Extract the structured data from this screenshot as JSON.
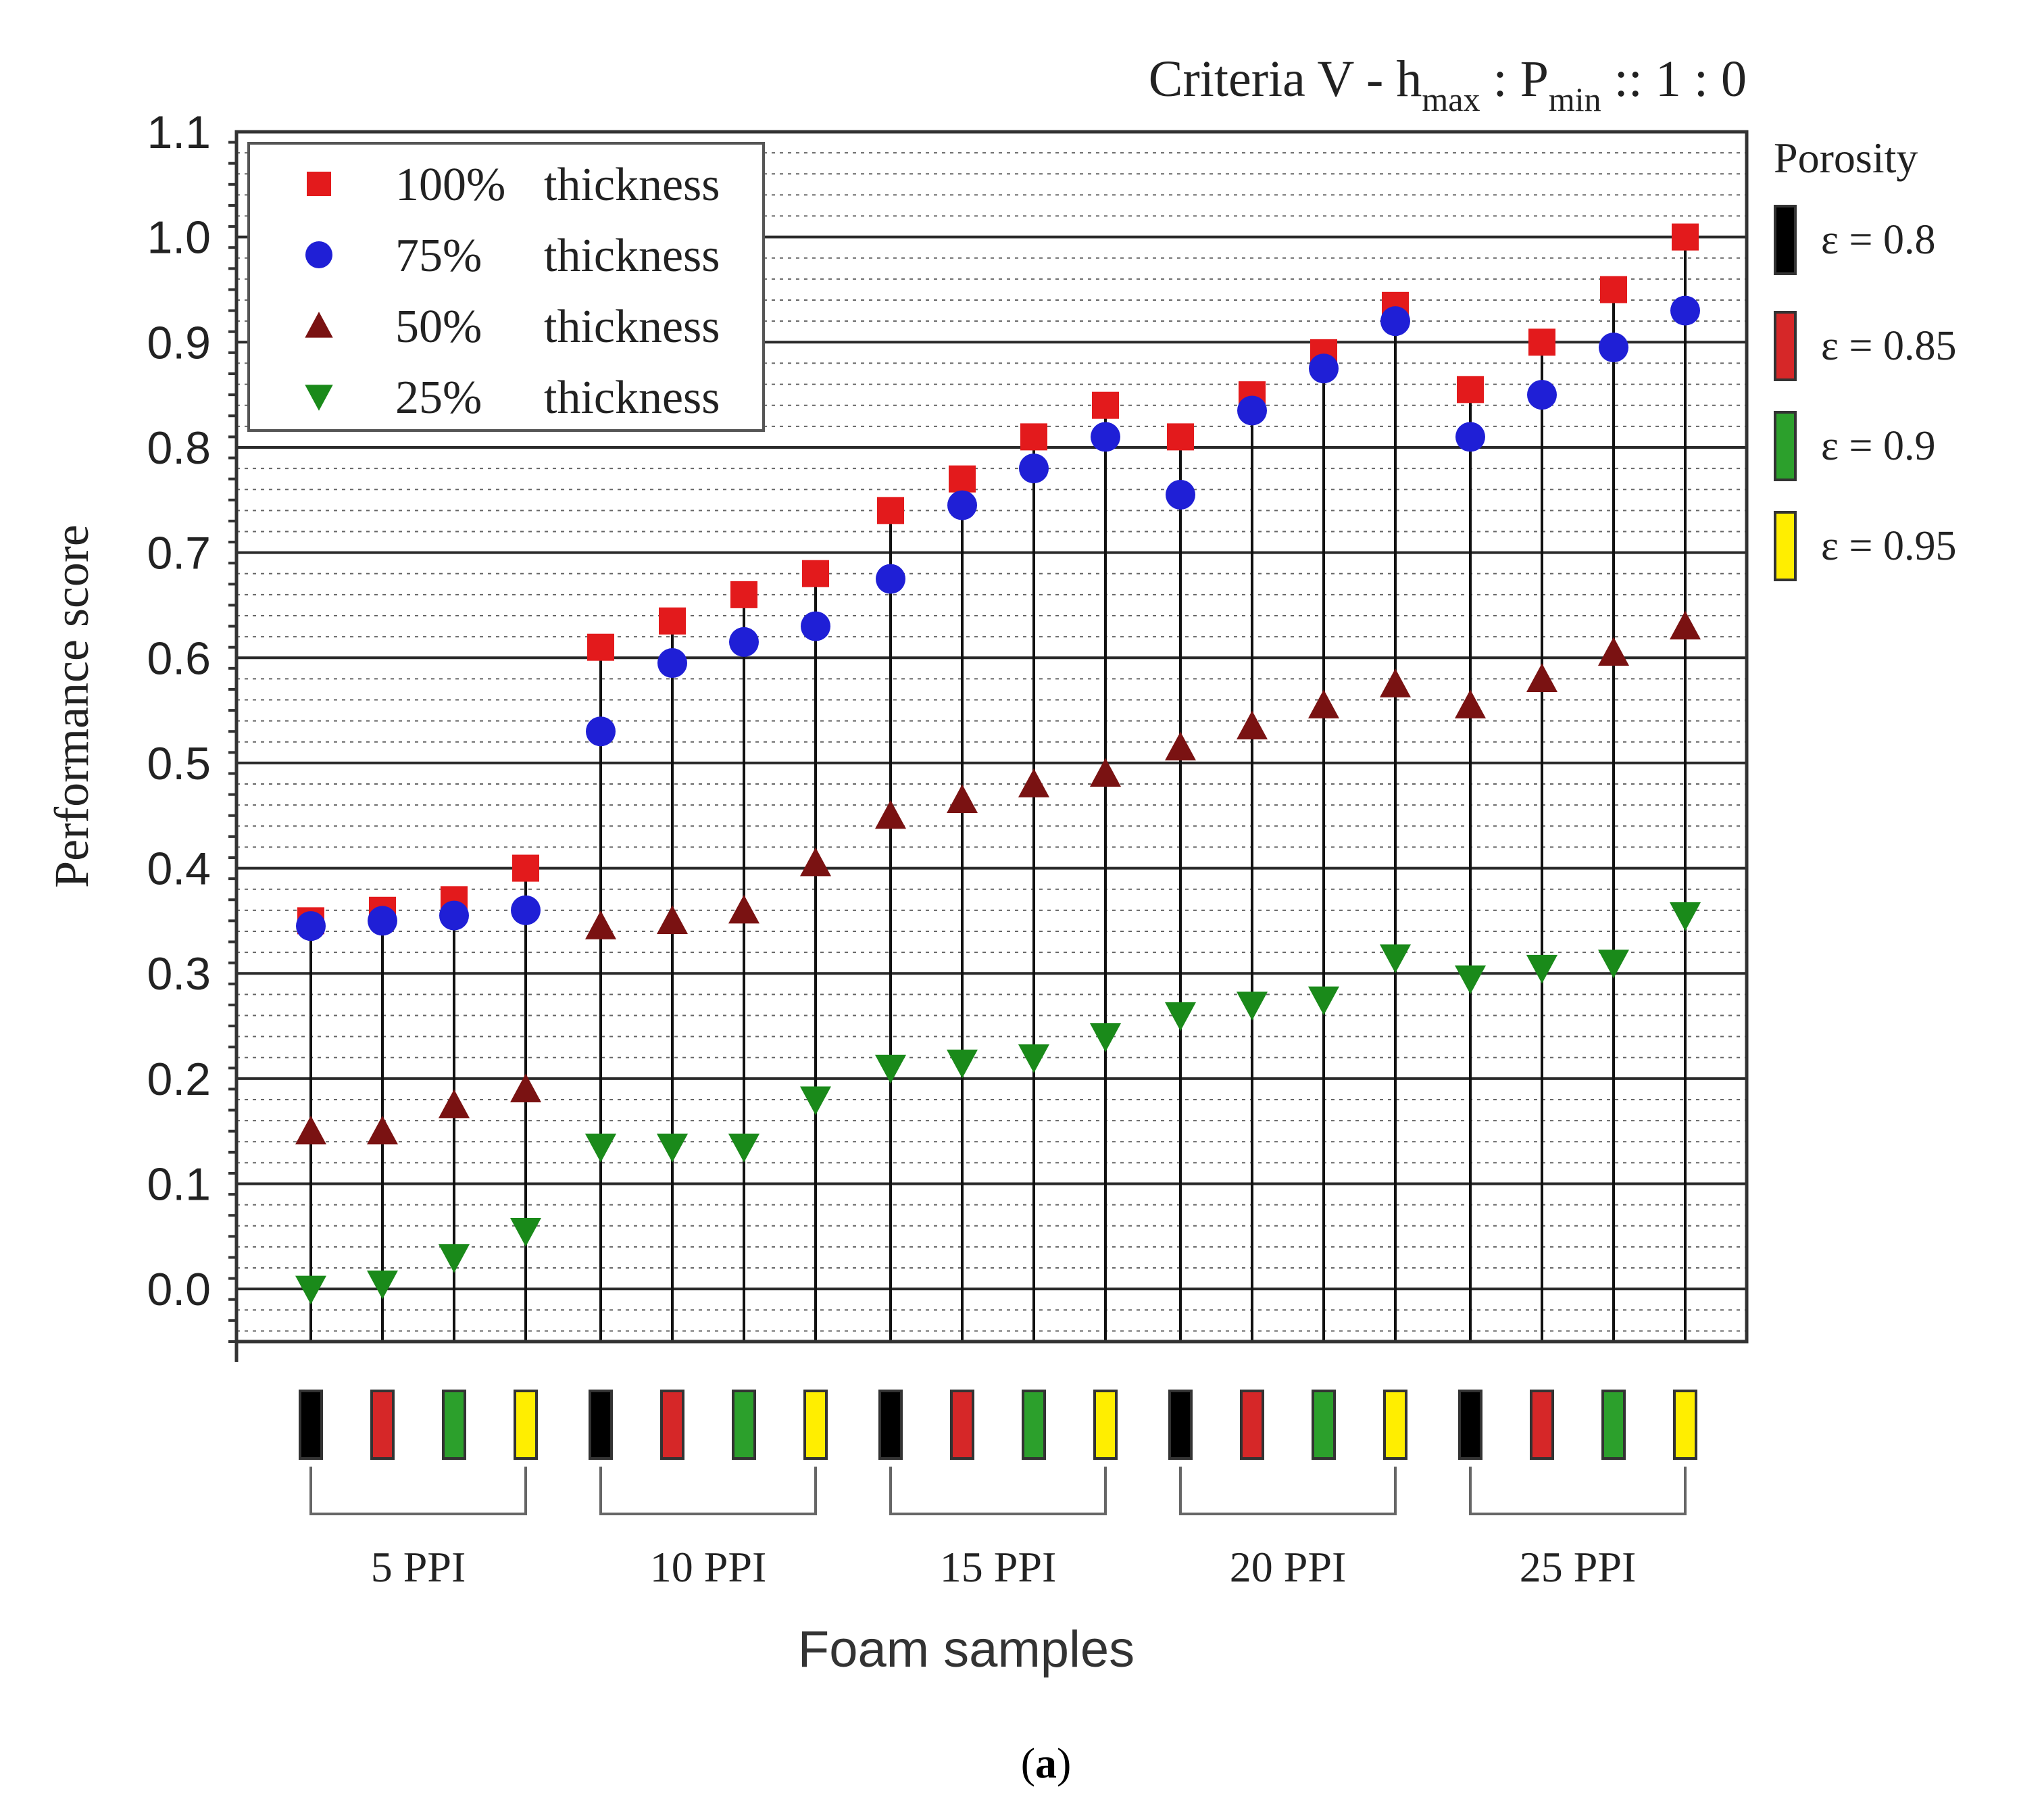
{
  "caption": {
    "open": "(",
    "letter": "a",
    "close": ")"
  },
  "chart_data": {
    "type": "scatter",
    "title": "Criteria V - h",
    "title_parts": {
      "main": "Criteria V - h",
      "sub1": "max",
      "mid": " : P",
      "sub2": "min",
      "tail": " :: 1 : 0"
    },
    "xlabel": "Foam samples",
    "ylabel": "Performance score",
    "ylim": [
      -0.05,
      1.1
    ],
    "y_ticks": [
      "0.0",
      "0.1",
      "0.2",
      "0.3",
      "0.4",
      "0.5",
      "0.6",
      "0.7",
      "0.8",
      "0.9",
      "1.0",
      "1.1"
    ],
    "groups": [
      "5 PPI",
      "10 PPI",
      "15 PPI",
      "20 PPI",
      "25 PPI"
    ],
    "porosity_per_group": [
      "0.8",
      "0.85",
      "0.9",
      "0.95"
    ],
    "series": [
      {
        "name": "100% thickness",
        "legend_pct": "100%",
        "legend_word": "thickness",
        "marker": "square",
        "color": "#e31a1c",
        "values": [
          0.35,
          0.36,
          0.37,
          0.4,
          0.61,
          0.635,
          0.66,
          0.68,
          0.74,
          0.77,
          0.81,
          0.84,
          0.81,
          0.85,
          0.89,
          0.935,
          0.855,
          0.9,
          0.95,
          1.0
        ]
      },
      {
        "name": "75% thickness",
        "legend_pct": "75%",
        "legend_word": "thickness",
        "marker": "circle",
        "color": "#1f1fd6",
        "values": [
          0.345,
          0.35,
          0.355,
          0.36,
          0.53,
          0.595,
          0.615,
          0.63,
          0.675,
          0.745,
          0.78,
          0.81,
          0.755,
          0.835,
          0.875,
          0.92,
          0.81,
          0.85,
          0.895,
          0.93
        ]
      },
      {
        "name": "50% thickness",
        "legend_pct": "50%",
        "legend_word": "thickness",
        "marker": "triangle-up",
        "color": "#7a1212",
        "values": [
          0.15,
          0.15,
          0.175,
          0.19,
          0.345,
          0.35,
          0.36,
          0.405,
          0.45,
          0.465,
          0.48,
          0.49,
          0.515,
          0.535,
          0.555,
          0.575,
          0.555,
          0.58,
          0.605,
          0.63
        ]
      },
      {
        "name": "25% thickness",
        "legend_pct": "25%",
        "legend_word": "thickness",
        "marker": "triangle-down",
        "color": "#1a8a1a",
        "values": [
          0.0,
          0.005,
          0.03,
          0.055,
          0.135,
          0.135,
          0.135,
          0.18,
          0.21,
          0.215,
          0.22,
          0.24,
          0.26,
          0.27,
          0.275,
          0.315,
          0.295,
          0.305,
          0.31,
          0.355
        ]
      }
    ],
    "porosity_legend": {
      "title": "Porosity",
      "symbol": "ε",
      "entries": [
        {
          "value": "0.8",
          "color": "#000000"
        },
        {
          "value": "0.85",
          "color": "#d62728"
        },
        {
          "value": "0.9",
          "color": "#2ca02c"
        },
        {
          "value": "0.95",
          "color": "#ffee00"
        }
      ]
    },
    "grid": true,
    "legend_position": "top-left"
  }
}
